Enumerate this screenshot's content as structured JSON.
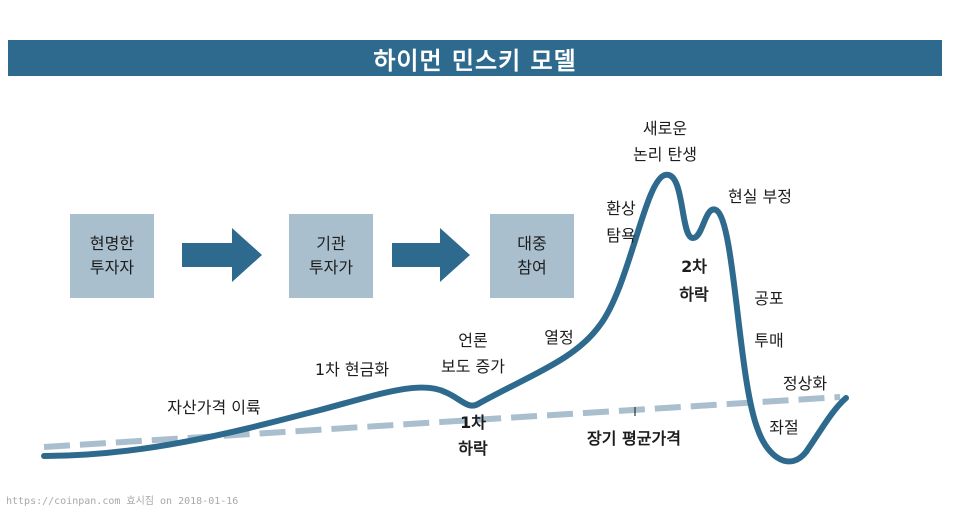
{
  "title": "하이먼 민스키 모델",
  "colors": {
    "title_bar": "#2e6a8e",
    "curve": "#2e6a8e",
    "box": "#a9bfcd",
    "arrow": "#2e6a8e",
    "dashed": "#a9bfcd"
  },
  "stages": [
    {
      "line1": "현명한",
      "line2": "투자자"
    },
    {
      "line1": "기관",
      "line2": "투자가"
    },
    {
      "line1": "대중",
      "line2": "참여"
    }
  ],
  "labels": {
    "asset_price_rise": "자산가격 이륙",
    "first_cash_out": "1차 현금화",
    "media_line1": "언론",
    "media_line2": "보도 증가",
    "first_drop_line1": "1차",
    "first_drop_line2": "하락",
    "enthusiasm": "열정",
    "greed_line1": "환상",
    "greed_line2": "탐욕",
    "new_logic_line1": "새로운",
    "new_logic_line2": "논리 탄생",
    "second_drop_line1": "2차",
    "second_drop_line2": "하락",
    "denial": "현실 부정",
    "fear": "공포",
    "dumping": "투매",
    "normalize": "정상화",
    "despair": "좌절",
    "long_term_avg": "장기 평균가격"
  },
  "watermark": "https://coinpan.com 효시짐 on 2018-01-16"
}
